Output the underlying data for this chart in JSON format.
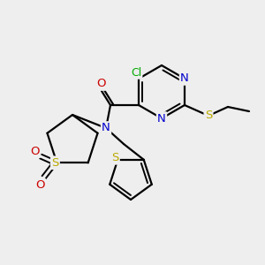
{
  "bg_color": "#eeeeee",
  "atom_colors": {
    "C": "#000000",
    "N": "#0000cc",
    "O": "#cc0000",
    "S": "#bbaa00",
    "Cl": "#00aa00"
  },
  "bond_color": "#000000",
  "figsize": [
    3.0,
    3.0
  ],
  "dpi": 100,
  "lw": 1.6,
  "dlw": 1.4,
  "fsize": 9.5
}
